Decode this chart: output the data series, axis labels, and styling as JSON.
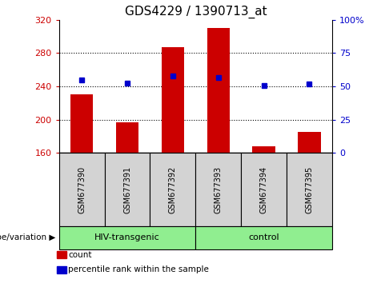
{
  "title": "GDS4229 / 1390713_at",
  "samples": [
    "GSM677390",
    "GSM677391",
    "GSM677392",
    "GSM677393",
    "GSM677394",
    "GSM677395"
  ],
  "bar_values": [
    230,
    197,
    287,
    310,
    168,
    185
  ],
  "bar_baseline": 160,
  "bar_color": "#cc0000",
  "dot_values_left": [
    248,
    244,
    252,
    251,
    241,
    243
  ],
  "dot_color": "#0000cc",
  "ylim_left": [
    160,
    320
  ],
  "yticks_left": [
    160,
    200,
    240,
    280,
    320
  ],
  "ylim_right": [
    0,
    100
  ],
  "yticks_right": [
    0,
    25,
    50,
    75,
    100
  ],
  "ytick_labels_right": [
    "0",
    "25",
    "50",
    "75",
    "100%"
  ],
  "grid_values": [
    200,
    240,
    280
  ],
  "groups": [
    {
      "label": "HIV-transgenic",
      "indices": [
        0,
        1,
        2
      ],
      "color": "#90ee90"
    },
    {
      "label": "control",
      "indices": [
        3,
        4,
        5
      ],
      "color": "#90ee90"
    }
  ],
  "group_label_prefix": "genotype/variation",
  "legend_items": [
    {
      "label": "count",
      "color": "#cc0000"
    },
    {
      "label": "percentile rank within the sample",
      "color": "#0000cc"
    }
  ],
  "title_fontsize": 11,
  "axis_label_color_left": "#cc0000",
  "axis_label_color_right": "#0000cc",
  "plot_bg_color": "#ffffff",
  "sample_box_color": "#d3d3d3",
  "group_box_color": "#90ee90"
}
